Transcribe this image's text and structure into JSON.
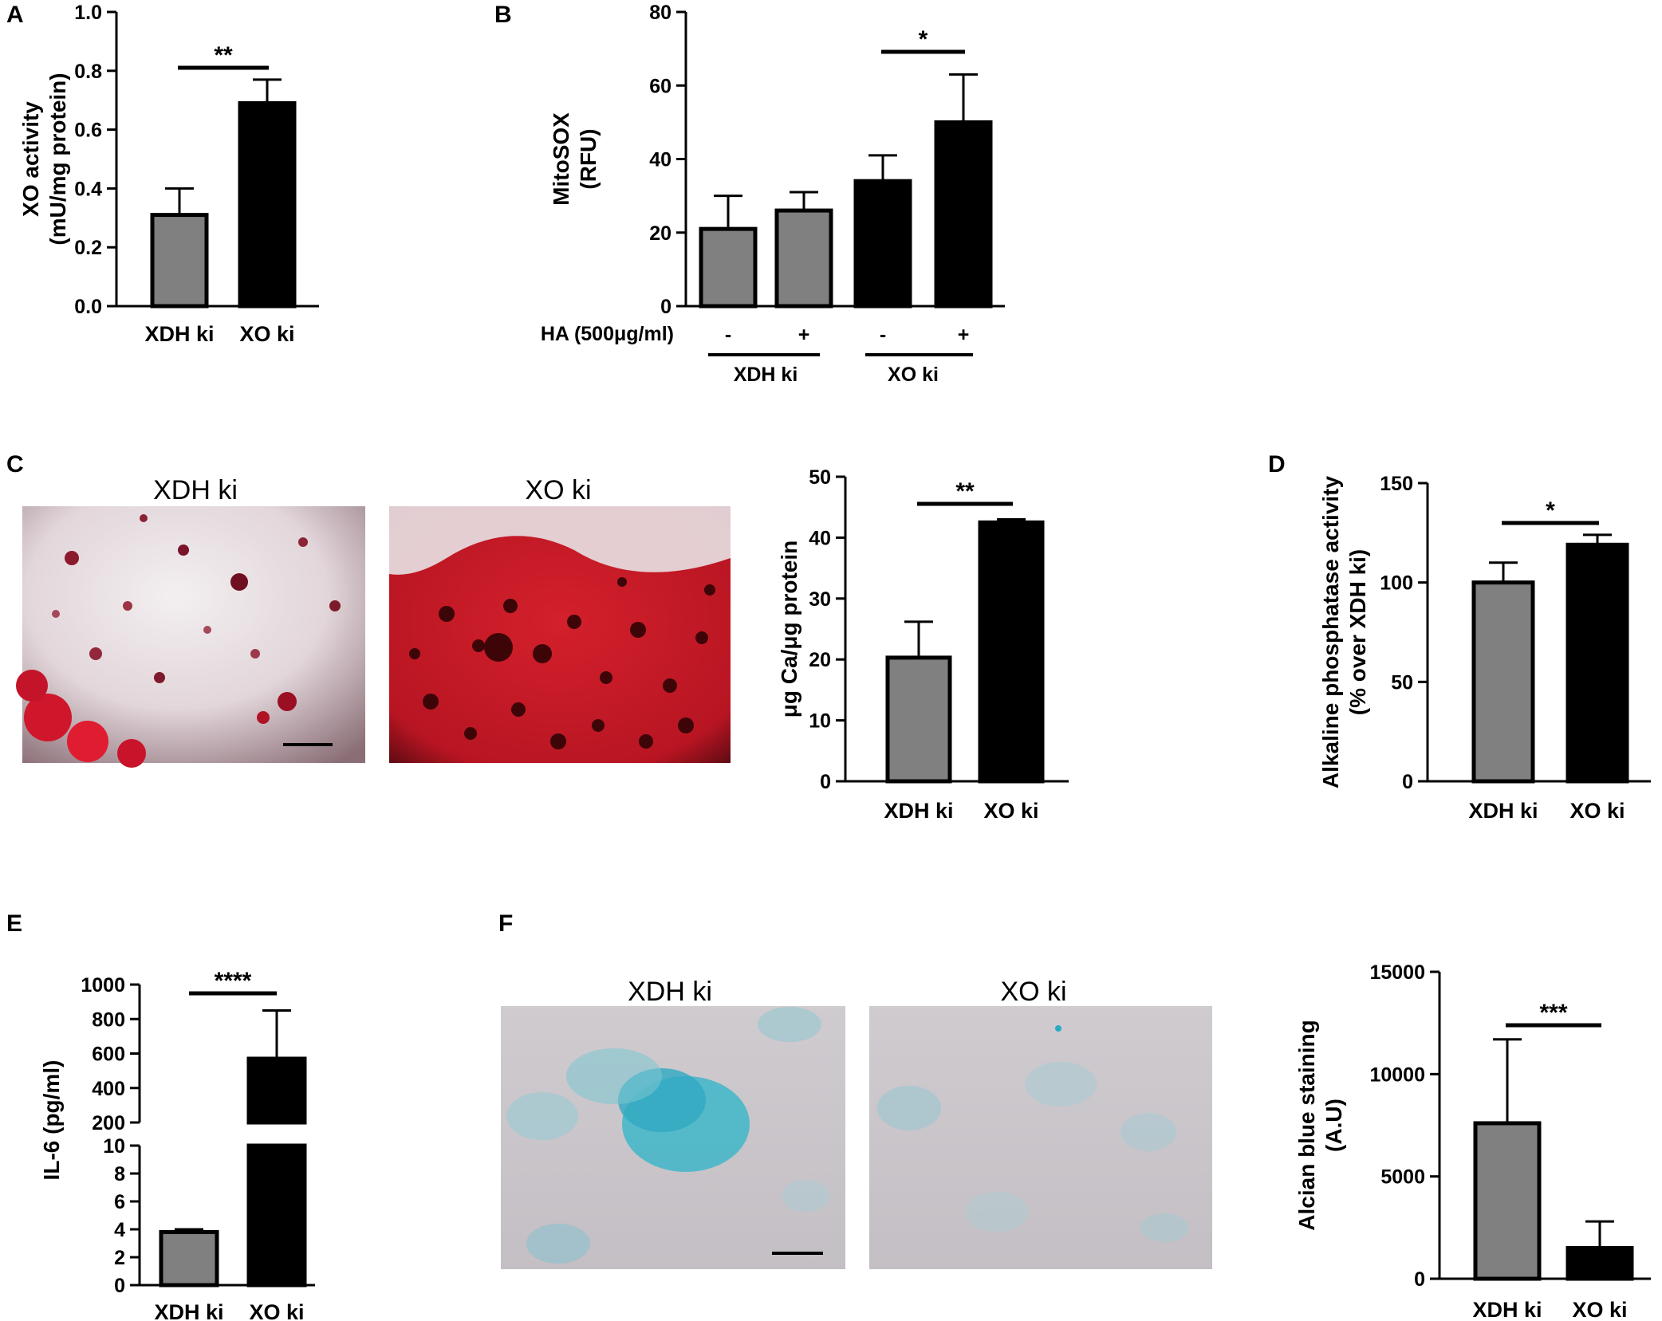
{
  "panels": {
    "A": "A",
    "B": "B",
    "C": "C",
    "D": "D",
    "E": "E",
    "F": "F"
  },
  "colors": {
    "xdh": "#808080",
    "xo": "#000000",
    "alizarin": "#d81e2e",
    "alcian": "#2bb0c8"
  },
  "images": {
    "c_left_title": "XDH ki",
    "c_right_title": "XO ki",
    "f_left_title": "XDH ki",
    "f_right_title": "XO ki"
  },
  "chart_data": [
    {
      "id": "A",
      "type": "bar",
      "categories": [
        "XDH ki",
        "XO ki"
      ],
      "values": [
        0.31,
        0.69
      ],
      "errors": [
        0.09,
        0.08
      ],
      "ylabel": [
        "XO activity",
        "(mU/mg protein)"
      ],
      "ylim": [
        0,
        1.0
      ],
      "yticks": [
        "0.0",
        "0.2",
        "0.4",
        "0.6",
        "0.8",
        "1.0"
      ],
      "significance": "**"
    },
    {
      "id": "B",
      "type": "bar",
      "categories": [
        "-",
        "+",
        "-",
        "+"
      ],
      "values": [
        21,
        26,
        34,
        50
      ],
      "errors": [
        9,
        5,
        7,
        13
      ],
      "ylabel": [
        "MitoSOX",
        "(RFU)"
      ],
      "ylim": [
        0,
        80
      ],
      "yticks": [
        "0",
        "20",
        "40",
        "60",
        "80"
      ],
      "row_label": "HA (500μg/ml)",
      "groups": [
        "XDH ki",
        "XO ki"
      ],
      "significance": "*"
    },
    {
      "id": "C",
      "type": "bar",
      "categories": [
        "XDH ki",
        "XO ki"
      ],
      "values": [
        20.3,
        42.5
      ],
      "errors": [
        5.9,
        0.5
      ],
      "ylabel": [
        "μg Ca/μg protein"
      ],
      "ylim": [
        0,
        50
      ],
      "yticks": [
        "0",
        "10",
        "20",
        "30",
        "40",
        "50"
      ],
      "significance": "**"
    },
    {
      "id": "D",
      "type": "bar",
      "categories": [
        "XDH ki",
        "XO ki"
      ],
      "values": [
        100,
        119
      ],
      "errors": [
        10,
        5
      ],
      "ylabel": [
        "Alkaline phosphatase activity",
        "(% over XDH ki)"
      ],
      "ylim": [
        0,
        150
      ],
      "yticks": [
        "0",
        "50",
        "100",
        "150"
      ],
      "significance": "*"
    },
    {
      "id": "E",
      "type": "bar",
      "categories": [
        "XDH ki",
        "XO ki"
      ],
      "values": [
        3.8,
        570
      ],
      "errors": [
        0.2,
        280
      ],
      "ylabel": [
        "IL-6 (pg/ml)"
      ],
      "lower_range": [
        0,
        10
      ],
      "upper_range": [
        200,
        1000
      ],
      "yticks_lower": [
        "0",
        "2",
        "4",
        "6",
        "8",
        "10"
      ],
      "yticks_upper": [
        "200",
        "400",
        "600",
        "800",
        "1000"
      ],
      "significance": "****"
    },
    {
      "id": "F",
      "type": "bar",
      "categories": [
        "XDH ki",
        "XO ki"
      ],
      "values": [
        7600,
        1500
      ],
      "errors": [
        4100,
        1300
      ],
      "ylabel": [
        "Alcian blue staining",
        "(A.U)"
      ],
      "ylim": [
        0,
        15000
      ],
      "yticks": [
        "0",
        "5000",
        "10000",
        "15000"
      ],
      "significance": "***"
    }
  ]
}
